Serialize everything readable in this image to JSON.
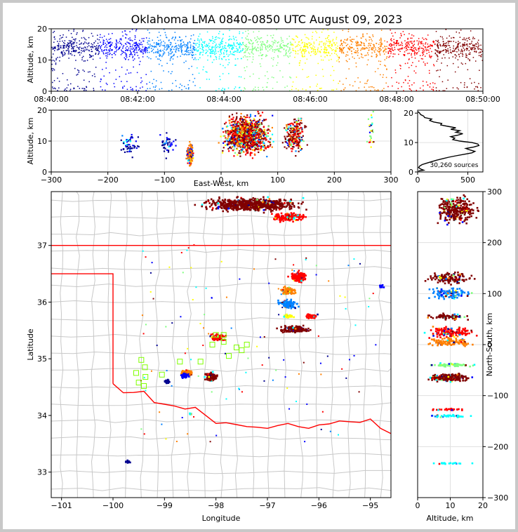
{
  "title": "Oklahoma LMA 0840-0850 UTC August 09, 2023",
  "colors": {
    "jet": [
      "#00008f",
      "#0000ff",
      "#0080ff",
      "#00ffff",
      "#80ff80",
      "#ffff00",
      "#ff8000",
      "#ff0000",
      "#800000"
    ],
    "state_border": "#ff0000",
    "county_lines": "#c8c8c8",
    "station_marker": "#80ff00"
  },
  "chart_data": [
    {
      "id": "time_height",
      "type": "scatter",
      "ylabel": "Altitude, km",
      "xlim": [
        "08:40:00",
        "08:50:00"
      ],
      "ylim": [
        0,
        20
      ],
      "xticks": [
        "08:40:00",
        "08:42:00",
        "08:44:00",
        "08:46:00",
        "08:48:00",
        "08:50:00"
      ],
      "yticks": [
        "0",
        "10",
        "20"
      ],
      "color_by": "time"
    },
    {
      "id": "ew_altitude",
      "type": "scatter",
      "xlabel": "East-West, km",
      "ylabel": "Altitude, km",
      "xlim": [
        -300,
        300
      ],
      "ylim": [
        0,
        20
      ],
      "xticks": [
        "−300",
        "−200",
        "−100",
        "0",
        "100",
        "200",
        "300"
      ],
      "yticks": [
        "0",
        "10",
        "20"
      ],
      "grid": true
    },
    {
      "id": "altitude_histogram",
      "type": "line",
      "annotation": "30,260 sources",
      "xlim": [
        0,
        650
      ],
      "ylim": [
        0,
        21
      ],
      "xticks": [
        "0",
        "500"
      ],
      "yticks": [
        "0",
        "10",
        "20"
      ],
      "profile": [
        [
          8,
          0.3
        ],
        [
          60,
          0.6
        ],
        [
          30,
          1
        ],
        [
          10,
          1.5
        ],
        [
          20,
          2
        ],
        [
          45,
          2.5
        ],
        [
          90,
          3
        ],
        [
          140,
          3.5
        ],
        [
          190,
          4
        ],
        [
          250,
          4.5
        ],
        [
          310,
          5
        ],
        [
          380,
          5.5
        ],
        [
          460,
          6
        ],
        [
          540,
          6.5
        ],
        [
          570,
          7
        ],
        [
          520,
          7.5
        ],
        [
          480,
          8
        ],
        [
          560,
          8.5
        ],
        [
          610,
          9
        ],
        [
          600,
          9.5
        ],
        [
          540,
          10
        ],
        [
          420,
          10.5
        ],
        [
          350,
          11
        ],
        [
          370,
          11.5
        ],
        [
          330,
          12
        ],
        [
          400,
          12.5
        ],
        [
          450,
          13
        ],
        [
          380,
          13.5
        ],
        [
          420,
          14
        ],
        [
          330,
          14.5
        ],
        [
          380,
          15
        ],
        [
          300,
          15.5
        ],
        [
          230,
          16
        ],
        [
          240,
          16.5
        ],
        [
          160,
          17
        ],
        [
          120,
          17.5
        ],
        [
          140,
          18
        ],
        [
          70,
          18.5
        ],
        [
          60,
          19
        ],
        [
          30,
          19.5
        ],
        [
          20,
          20
        ],
        [
          5,
          20.5
        ]
      ]
    },
    {
      "id": "plan_view",
      "type": "scatter",
      "xlabel": "Longitude",
      "ylabel": "Latitude",
      "xlim": [
        -101.2,
        -94.6
      ],
      "ylim": [
        32.55,
        37.95
      ],
      "xticks": [
        "−101",
        "−100",
        "−99",
        "−98",
        "−97",
        "−96",
        "−95"
      ],
      "yticks": [
        "33",
        "34",
        "35",
        "36",
        "37"
      ],
      "clusters": [
        {
          "lon": -97.3,
          "lat": 37.72,
          "dlon": 1.2,
          "dlat": 0.15,
          "n": 650,
          "color": "#800000"
        },
        {
          "lon": -96.6,
          "lat": 37.5,
          "dlon": 0.4,
          "dlat": 0.1,
          "n": 160,
          "color": "#ff0000"
        },
        {
          "lon": -96.4,
          "lat": 36.45,
          "dlon": 0.22,
          "dlat": 0.12,
          "n": 130,
          "color": "#ff0000"
        },
        {
          "lon": -96.6,
          "lat": 36.2,
          "dlon": 0.2,
          "dlat": 0.08,
          "n": 90,
          "color": "#ff8000"
        },
        {
          "lon": -96.6,
          "lat": 35.97,
          "dlon": 0.25,
          "dlat": 0.1,
          "n": 100,
          "color": "#0080ff"
        },
        {
          "lon": -96.45,
          "lat": 35.52,
          "dlon": 0.4,
          "dlat": 0.07,
          "n": 180,
          "color": "#800000"
        },
        {
          "lon": -96.15,
          "lat": 35.75,
          "dlon": 0.15,
          "dlat": 0.05,
          "n": 60,
          "color": "#ff0000"
        },
        {
          "lon": -96.6,
          "lat": 35.75,
          "dlon": 0.15,
          "dlat": 0.04,
          "n": 40,
          "color": "#ffff00"
        },
        {
          "lon": -97.95,
          "lat": 35.38,
          "dlon": 0.2,
          "dlat": 0.08,
          "n": 60,
          "color": "#ff0000"
        },
        {
          "lon": -98.1,
          "lat": 34.68,
          "dlon": 0.15,
          "dlat": 0.1,
          "n": 140,
          "color": "#800000"
        },
        {
          "lon": -98.55,
          "lat": 34.75,
          "dlon": 0.15,
          "dlat": 0.06,
          "n": 90,
          "color": "#ff8000"
        },
        {
          "lon": -98.6,
          "lat": 34.7,
          "dlon": 0.1,
          "dlat": 0.05,
          "n": 50,
          "color": "#0000ff"
        },
        {
          "lon": -98.95,
          "lat": 34.6,
          "dlon": 0.08,
          "dlat": 0.05,
          "n": 20,
          "color": "#00008f"
        },
        {
          "lon": -99.7,
          "lat": 33.18,
          "dlon": 0.08,
          "dlat": 0.03,
          "n": 15,
          "color": "#00008f"
        },
        {
          "lon": -98.5,
          "lat": 34.03,
          "dlon": 0.04,
          "dlat": 0.02,
          "n": 10,
          "color": "#00ffff"
        },
        {
          "lon": -94.8,
          "lat": 36.28,
          "dlon": 0.08,
          "dlat": 0.05,
          "n": 15,
          "color": "#0000ff"
        }
      ],
      "stations": [
        [
          -99.45,
          34.98
        ],
        [
          -99.38,
          34.85
        ],
        [
          -99.55,
          34.75
        ],
        [
          -99.37,
          34.68
        ],
        [
          -99.5,
          34.58
        ],
        [
          -99.4,
          34.52
        ],
        [
          -99.05,
          34.72
        ],
        [
          -98.7,
          34.95
        ],
        [
          -98.3,
          34.95
        ],
        [
          -98.07,
          35.25
        ],
        [
          -98.0,
          35.42
        ],
        [
          -97.85,
          35.42
        ],
        [
          -97.85,
          35.3
        ],
        [
          -97.6,
          35.2
        ],
        [
          -97.5,
          35.15
        ],
        [
          -97.4,
          35.25
        ],
        [
          -97.75,
          35.05
        ]
      ]
    },
    {
      "id": "altitude_ns",
      "type": "scatter",
      "xlabel": "Altitude, km",
      "ylabel": "North-South, km",
      "xlim": [
        0,
        20
      ],
      "ylim": [
        -300,
        300
      ],
      "xticks": [
        "0",
        "10",
        "20"
      ],
      "yticks": [
        "300",
        "200",
        "100",
        "0",
        "−100",
        "−200",
        "−300"
      ],
      "grid": true,
      "clusters": [
        {
          "ns": 265,
          "dns": 35,
          "n": 280,
          "color": "#800000"
        },
        {
          "ns": 130,
          "dns": 15,
          "n": 140,
          "color": "#800000"
        },
        {
          "ns": 100,
          "dns": 15,
          "n": 100,
          "color": "#0080ff"
        },
        {
          "ns": 55,
          "dns": 8,
          "n": 70,
          "color": "#800000"
        },
        {
          "ns": 25,
          "dns": 14,
          "n": 140,
          "color": "#ff0000"
        },
        {
          "ns": 5,
          "dns": 12,
          "n": 120,
          "color": "#ff8000"
        },
        {
          "ns": -40,
          "dns": 5,
          "n": 60,
          "color": "#80ff80"
        },
        {
          "ns": -65,
          "dns": 10,
          "n": 200,
          "color": "#800000"
        },
        {
          "ns": -127,
          "dns": 3,
          "n": 25,
          "color": "#ff0000"
        },
        {
          "ns": -140,
          "dns": 3,
          "n": 40,
          "color": "#00ffff"
        },
        {
          "ns": -233,
          "dns": 2,
          "n": 20,
          "color": "#00ffff"
        }
      ]
    }
  ]
}
